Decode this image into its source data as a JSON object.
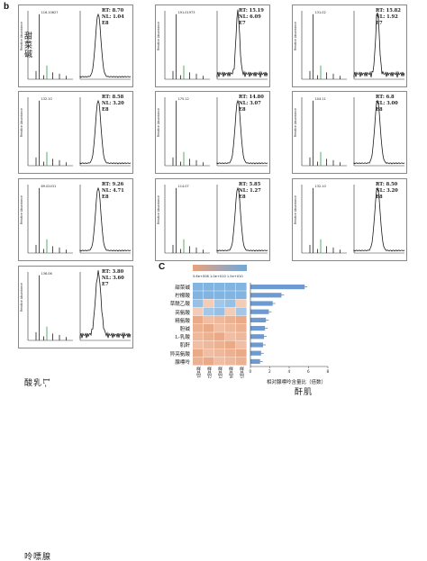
{
  "figure": {
    "panel_b": "b",
    "panel_c": "C"
  },
  "tiles": [
    {
      "name": "tile-1",
      "label": "甜菜碱",
      "rt_text": "RT: 8.70",
      "nl_text": "NL: 1.04 E8",
      "peak": "116.10627"
    },
    {
      "name": "tile-2",
      "label": "柠檬酸",
      "rt_text": "RT: 15.19",
      "nl_text": "NL: 6.09 E7",
      "peak": "191.01973"
    },
    {
      "name": "tile-3",
      "label": "草酰乙酸",
      "rt_text": "RT: 15.82",
      "nl_text": "NL: 1.92 E7",
      "peak": "131.02"
    },
    {
      "name": "tile-4",
      "label": "亮氨酸",
      "rt_text": "RT: 8.58",
      "nl_text": "NL: 3.20 E8",
      "peak": "132.10"
    },
    {
      "name": "tile-5",
      "label": "精氨酸",
      "rt_text": "RT: 14.80",
      "nl_text": "NL: 3.07 E8",
      "peak": "175.12"
    },
    {
      "name": "tile-6",
      "label": "胆碱",
      "rt_text": "RT: 6.8",
      "nl_text": "NL: 3.00 E8",
      "peak": "104.11"
    },
    {
      "name": "tile-7",
      "label": "L-乳酸",
      "rt_text": "RT: 9.26",
      "nl_text": "NL: 4.71 E8",
      "peak": "89.02431"
    },
    {
      "name": "tile-8",
      "label": "肌酐",
      "rt_text": "RT: 5.85",
      "nl_text": "NL: 1.27 E8",
      "peak": "114.07"
    },
    {
      "name": "tile-9",
      "label": "异亮氨酸",
      "rt_text": "RT: 8.50",
      "nl_text": "NL: 3.20 E8",
      "peak": "132.10"
    },
    {
      "name": "tile-10",
      "label": "腺嘌呤",
      "rt_text": "RT: 3.80",
      "nl_text": "NL: 3.60 E7",
      "peak": "136.06"
    }
  ],
  "chart_data": {
    "type": "heatmap",
    "scale_text": "5.6e+008 1.0e+010 1.5e+010",
    "rows": [
      "甜菜碱",
      "柠檬酸",
      "草酰乙酸",
      "亮氨酸",
      "精氨酸",
      "胆碱",
      "L-乳酸",
      "肌酐",
      "异亮氨酸",
      "腺嘌呤"
    ],
    "columns": [
      "样品1",
      "样品2",
      "样品3",
      "样品4",
      "样品5"
    ],
    "bars": [
      5.6,
      3.2,
      2.3,
      1.9,
      1.6,
      1.5,
      1.4,
      1.3,
      1.1,
      1.0
    ],
    "bar_xlabel": "相对腺嘌呤含量比（倍数）",
    "bar_ticks": [
      "0",
      "2",
      "4",
      "6",
      "8"
    ],
    "colors": {
      "high": "#6fa8dc",
      "low": "#e8a27c"
    }
  }
}
